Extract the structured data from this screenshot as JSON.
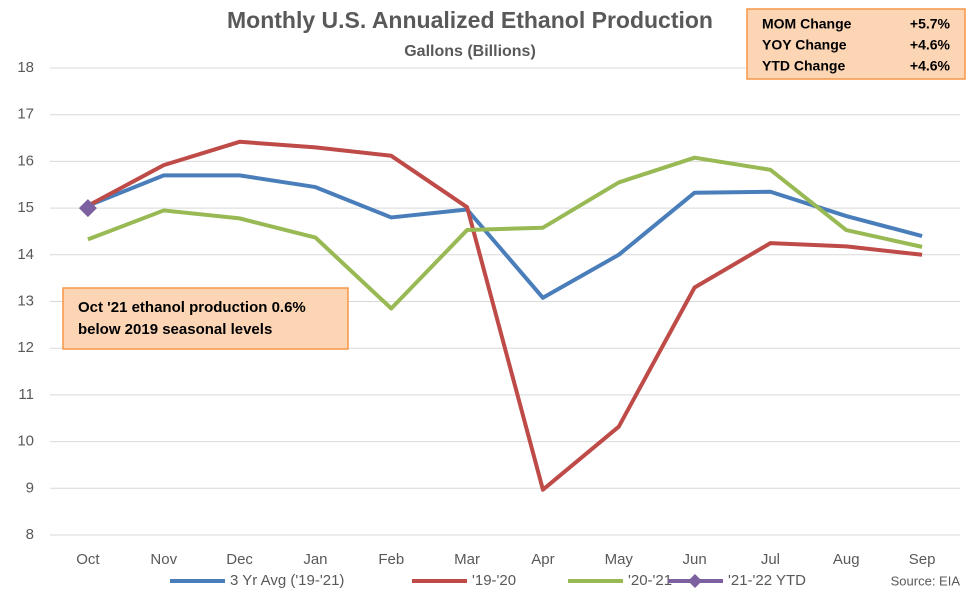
{
  "chart_data": {
    "type": "line",
    "title": "Monthly U.S. Annualized Ethanol Production",
    "subtitle": "Gallons (Billions)",
    "categories": [
      "Oct",
      "Nov",
      "Dec",
      "Jan",
      "Feb",
      "Mar",
      "Apr",
      "May",
      "Jun",
      "Jul",
      "Aug",
      "Sep"
    ],
    "series": [
      {
        "name": "3 Yr Avg ('19-'21)",
        "color": "#4a7ebb",
        "values": [
          15.05,
          15.7,
          15.7,
          15.45,
          14.8,
          14.97,
          13.08,
          14.0,
          15.33,
          15.35,
          14.83,
          14.4
        ]
      },
      {
        "name": "'19-'20",
        "color": "#be4b48",
        "values": [
          15.05,
          15.92,
          16.42,
          16.3,
          16.12,
          15.02,
          8.97,
          10.32,
          13.3,
          14.25,
          14.18,
          14.0
        ]
      },
      {
        "name": "'20-'21",
        "color": "#98b954",
        "values": [
          14.33,
          14.95,
          14.78,
          14.37,
          12.85,
          14.53,
          14.58,
          15.55,
          16.08,
          15.82,
          14.53,
          14.17
        ]
      },
      {
        "name": "'21-'22 YTD",
        "color": "#7d60a0",
        "values": [
          15.0,
          null,
          null,
          null,
          null,
          null,
          null,
          null,
          null,
          null,
          null,
          null
        ]
      }
    ],
    "ylim": [
      8,
      18
    ],
    "yticks": [
      8,
      9,
      10,
      11,
      12,
      13,
      14,
      15,
      16,
      17,
      18
    ],
    "grid": true,
    "annotation": [
      "Oct '21 ethanol production 0.6%",
      "below 2019 seasonal levels"
    ],
    "stats": [
      [
        "MOM Change",
        "+5.7%"
      ],
      [
        "YOY Change",
        "+4.6%"
      ],
      [
        "YTD Change",
        "+4.6%"
      ]
    ],
    "source": "Source: EIA"
  }
}
